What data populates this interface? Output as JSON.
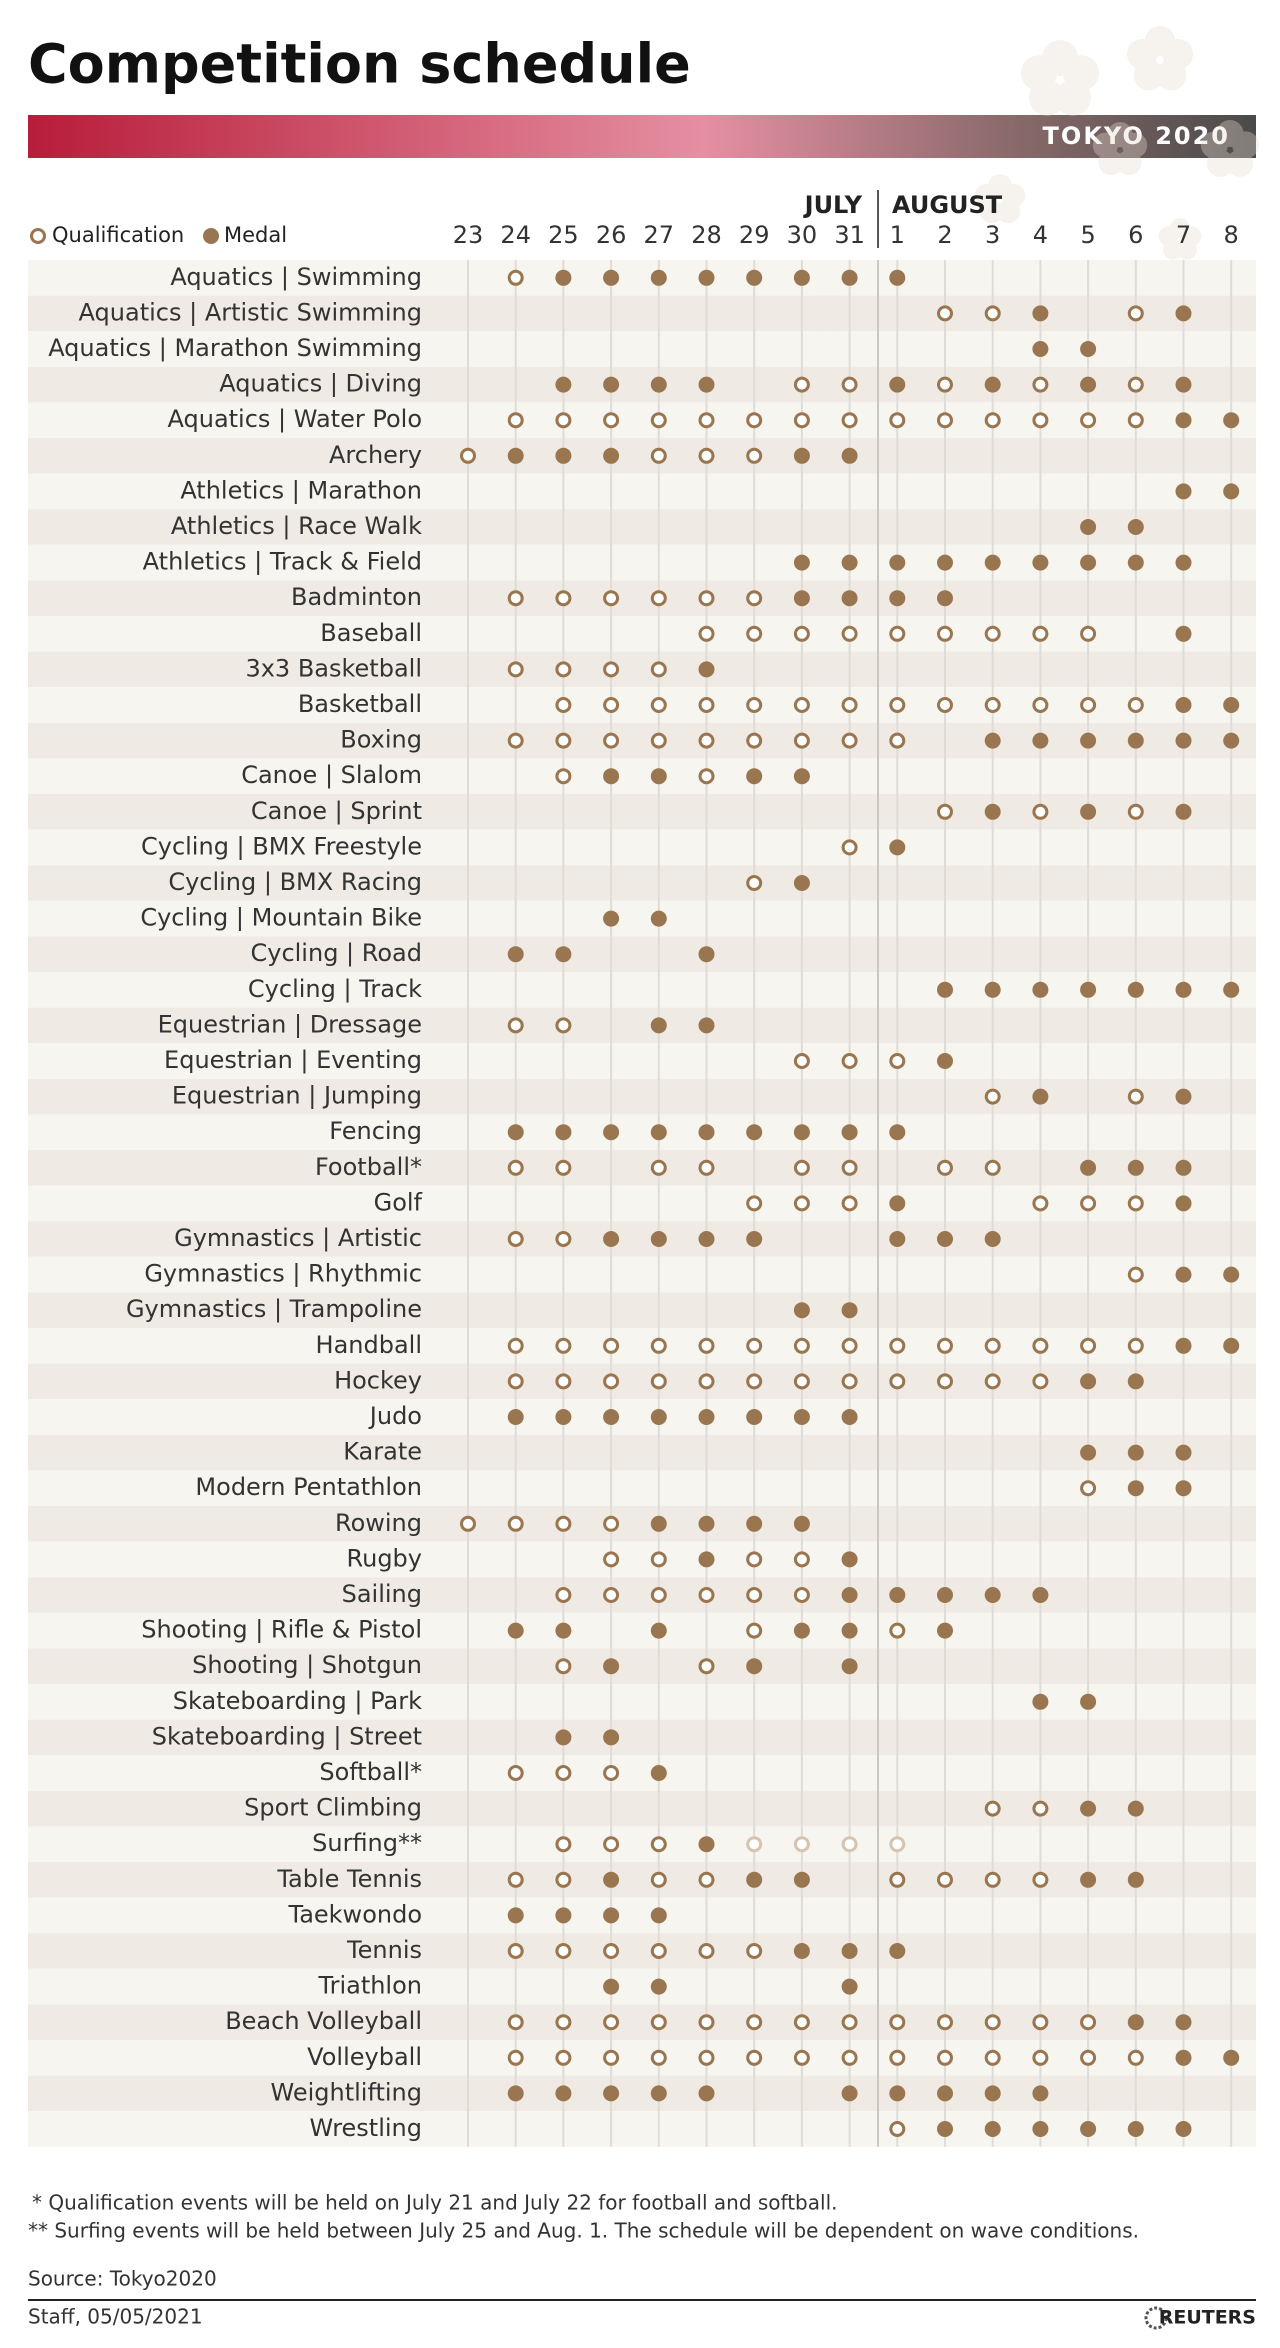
{
  "title": "Competition schedule",
  "badge": "TOKYO 2020",
  "legend": {
    "qualification": "Qualification",
    "medal": "Medal"
  },
  "months": [
    "JULY",
    "AUGUST"
  ],
  "days": [
    23,
    24,
    25,
    26,
    27,
    28,
    29,
    30,
    31,
    1,
    2,
    3,
    4,
    5,
    6,
    7,
    8
  ],
  "rows": [
    {
      "sport": "Aquatics | Swimming",
      "schedule": ".ommmmmmmm......."
    },
    {
      "sport": "Aquatics | Artistic Swimming",
      "schedule": "..........oom.om."
    },
    {
      "sport": "Aquatics | Marathon Swimming",
      "schedule": "............mm..."
    },
    {
      "sport": "Aquatics | Diving",
      "schedule": "..mmmm.oomomomom."
    },
    {
      "sport": "Aquatics | Water Polo",
      "schedule": ".oooooooooooooomm"
    },
    {
      "sport": "Archery",
      "schedule": "ommmooomm........"
    },
    {
      "sport": "Athletics | Marathon",
      "schedule": "...............mm"
    },
    {
      "sport": "Athletics | Race Walk",
      "schedule": ".............mm.."
    },
    {
      "sport": "Athletics | Track & Field",
      "schedule": ".......mmmmmmmmm."
    },
    {
      "sport": "Badminton",
      "schedule": ".oooooommmm......"
    },
    {
      "sport": "Baseball",
      "schedule": ".....ooooooooo.m."
    },
    {
      "sport": "3x3 Basketball",
      "schedule": ".oooom..........."
    },
    {
      "sport": "Basketball",
      "schedule": "..ooooooooooooomm"
    },
    {
      "sport": "Boxing",
      "schedule": ".ooooooooo.mmmmmm"
    },
    {
      "sport": "Canoe | Slalom",
      "schedule": "..ommomm........."
    },
    {
      "sport": "Canoe | Sprint",
      "schedule": "..........omomom."
    },
    {
      "sport": "Cycling | BMX Freestyle",
      "schedule": "........om......."
    },
    {
      "sport": "Cycling | BMX Racing",
      "schedule": "......om........."
    },
    {
      "sport": "Cycling | Mountain Bike",
      "schedule": "...mm............"
    },
    {
      "sport": "Cycling | Road",
      "schedule": ".mm..m..........."
    },
    {
      "sport": "Cycling | Track",
      "schedule": "..........mmmmmmm"
    },
    {
      "sport": "Equestrian | Dressage",
      "schedule": ".oo.mm..........."
    },
    {
      "sport": "Equestrian | Eventing",
      "schedule": ".......ooom......"
    },
    {
      "sport": "Equestrian | Jumping",
      "schedule": "...........om.om."
    },
    {
      "sport": "Fencing",
      "schedule": ".mmmmmmmmm......."
    },
    {
      "sport": "Football*",
      "schedule": ".oo.oo.oo.oo.mmm."
    },
    {
      "sport": "Golf",
      "schedule": "......ooom..ooom."
    },
    {
      "sport": "Gymnastics | Artistic",
      "schedule": ".oommmm..mmm....."
    },
    {
      "sport": "Gymnastics | Rhythmic",
      "schedule": "..............omm"
    },
    {
      "sport": "Gymnastics | Trampoline",
      "schedule": ".......mm........"
    },
    {
      "sport": "Handball",
      "schedule": ".oooooooooooooomm"
    },
    {
      "sport": "Hockey",
      "schedule": ".oooooooooooomm.."
    },
    {
      "sport": "Judo",
      "schedule": ".mmmmmmmm........"
    },
    {
      "sport": "Karate",
      "schedule": ".............mmm."
    },
    {
      "sport": "Modern Pentathlon",
      "schedule": ".............omm."
    },
    {
      "sport": "Rowing",
      "schedule": "oooommmm........."
    },
    {
      "sport": "Rugby",
      "schedule": "...oomoom........"
    },
    {
      "sport": "Sailing",
      "schedule": "..oooooommmmm...."
    },
    {
      "sport": "Shooting | Rifle & Pistol",
      "schedule": ".mm.m.ommom......"
    },
    {
      "sport": "Shooting | Shotgun",
      "schedule": "..om.om.m........"
    },
    {
      "sport": "Skateboarding | Park",
      "schedule": "............mm..."
    },
    {
      "sport": "Skateboarding | Street",
      "schedule": "..mm............."
    },
    {
      "sport": "Softball*",
      "schedule": ".ooom............"
    },
    {
      "sport": "Sport Climbing",
      "schedule": "...........oomm.."
    },
    {
      "sport": "Surfing**",
      "schedule": "..ooomffff......."
    },
    {
      "sport": "Table Tennis",
      "schedule": ".oomoomm.oooomm.."
    },
    {
      "sport": "Taekwondo",
      "schedule": ".mmmm............"
    },
    {
      "sport": "Tennis",
      "schedule": ".oooooommm......."
    },
    {
      "sport": "Triathlon",
      "schedule": "...mm...m........"
    },
    {
      "sport": "Beach Volleyball",
      "schedule": ".ooooooooooooomm."
    },
    {
      "sport": "Volleyball",
      "schedule": ".oooooooooooooomm"
    },
    {
      "sport": "Weightlifting",
      "schedule": ".mmmmm..mmmmm...."
    },
    {
      "sport": "Wrestling",
      "schedule": ".........ommmmmm."
    }
  ],
  "footnotes": [
    "* Qualification events will be held on July 21 and July 22 for football and softball.",
    "** Surfing events will be held between July 25 and Aug. 1. The schedule will be dependent on wave conditions."
  ],
  "source": "Source: Tokyo2020",
  "credit": "Staff, 05/05/2021",
  "logo": "REUTERS"
}
